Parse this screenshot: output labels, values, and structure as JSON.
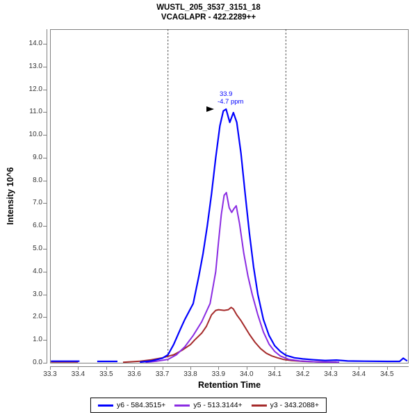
{
  "title": {
    "line1": "WUSTL_205_3537_3151_18",
    "line2": "VCAGLAPR - 422.2289++"
  },
  "legend": {
    "items": [
      {
        "label": "y6 - 584.3515+",
        "color": "#0000FF"
      },
      {
        "label": "y5 - 513.3144+",
        "color": "#8A2BE2"
      },
      {
        "label": "y3 - 343.2088+",
        "color": "#A52A2A"
      }
    ]
  },
  "annotation": {
    "rt_label": "33.9",
    "ppm_label": "-4.7 ppm"
  },
  "colors": {
    "frame": "#808080",
    "tick_text": "#333333",
    "boundary_line": "#444444",
    "annotation_text": "#0000FF",
    "title_text": "#000000"
  },
  "chart_data": {
    "type": "line",
    "title": "WUSTL_205_3537_3151_18",
    "subtitle": "VCAGLAPR - 422.2289++",
    "xlabel": "Retention Time",
    "ylabel": "Intensity 10^6",
    "xlim": [
      33.295,
      34.577
    ],
    "ylim": [
      0,
      14.64
    ],
    "x_ticks": [
      "33.3",
      "33.4",
      "33.5",
      "33.6",
      "33.7",
      "33.8",
      "33.9",
      "34.0",
      "34.1",
      "34.2",
      "34.3",
      "34.4",
      "34.5"
    ],
    "y_ticks": [
      "0.0",
      "1.0",
      "2.0",
      "3.0",
      "4.0",
      "5.0",
      "6.0",
      "7.0",
      "8.0",
      "9.0",
      "10.0",
      "11.0",
      "12.0",
      "13.0",
      "14.0"
    ],
    "grid": false,
    "legend_position": "bottom-center",
    "integration_boundaries": [
      33.72,
      34.14
    ],
    "peak_annotation": {
      "x": 33.92,
      "y": 11.13,
      "rt_label": "33.9",
      "ppm_label": "-4.7 ppm"
    },
    "series": [
      {
        "name": "y6 - 584.3515+",
        "color": "#0000FF",
        "width": 2.2,
        "segments": [
          [
            [
              33.303,
              0.07
            ],
            [
              33.405,
              0.07
            ]
          ],
          [
            [
              33.468,
              0.06
            ],
            [
              33.54,
              0.06
            ]
          ],
          [
            [
              33.62,
              0.03
            ],
            [
              33.66,
              0.08
            ],
            [
              33.7,
              0.2
            ],
            [
              33.72,
              0.35
            ],
            [
              33.74,
              0.8
            ],
            [
              33.765,
              1.5
            ],
            [
              33.78,
              1.9
            ],
            [
              33.81,
              2.6
            ],
            [
              33.83,
              3.8
            ],
            [
              33.845,
              4.8
            ],
            [
              33.86,
              6.0
            ],
            [
              33.875,
              7.4
            ],
            [
              33.89,
              9.0
            ],
            [
              33.905,
              10.4
            ],
            [
              33.917,
              11.05
            ],
            [
              33.927,
              11.13
            ],
            [
              33.94,
              10.55
            ],
            [
              33.953,
              10.98
            ],
            [
              33.965,
              10.55
            ],
            [
              33.98,
              9.2
            ],
            [
              33.995,
              7.4
            ],
            [
              34.01,
              5.7
            ],
            [
              34.025,
              4.2
            ],
            [
              34.04,
              3.0
            ],
            [
              34.06,
              1.9
            ],
            [
              34.08,
              1.2
            ],
            [
              34.1,
              0.75
            ],
            [
              34.12,
              0.5
            ],
            [
              34.14,
              0.33
            ],
            [
              34.17,
              0.22
            ],
            [
              34.2,
              0.17
            ],
            [
              34.24,
              0.13
            ],
            [
              34.28,
              0.1
            ],
            [
              34.32,
              0.12
            ],
            [
              34.36,
              0.08
            ],
            [
              34.42,
              0.07
            ],
            [
              34.5,
              0.06
            ],
            [
              34.545,
              0.06
            ],
            [
              34.558,
              0.2
            ],
            [
              34.572,
              0.08
            ]
          ]
        ]
      },
      {
        "name": "y5 - 513.3144+",
        "color": "#8A2BE2",
        "width": 2,
        "segments": [
          [
            [
              33.64,
              0.02
            ],
            [
              33.68,
              0.07
            ],
            [
              33.72,
              0.15
            ],
            [
              33.75,
              0.35
            ],
            [
              33.78,
              0.7
            ],
            [
              33.81,
              1.2
            ],
            [
              33.84,
              1.8
            ],
            [
              33.87,
              2.6
            ],
            [
              33.89,
              4.0
            ],
            [
              33.9,
              5.3
            ],
            [
              33.91,
              6.5
            ],
            [
              33.92,
              7.35
            ],
            [
              33.928,
              7.47
            ],
            [
              33.938,
              6.8
            ],
            [
              33.947,
              6.6
            ],
            [
              33.956,
              6.78
            ],
            [
              33.963,
              6.89
            ],
            [
              33.975,
              6.1
            ],
            [
              33.99,
              4.8
            ],
            [
              34.005,
              3.8
            ],
            [
              34.02,
              3.0
            ],
            [
              34.04,
              2.1
            ],
            [
              34.06,
              1.35
            ],
            [
              34.08,
              0.82
            ],
            [
              34.1,
              0.5
            ],
            [
              34.12,
              0.3
            ],
            [
              34.15,
              0.15
            ],
            [
              34.19,
              0.08
            ],
            [
              34.25,
              0.04
            ],
            [
              34.33,
              0.02
            ]
          ]
        ]
      },
      {
        "name": "y3 - 343.2088+",
        "color": "#A52A2A",
        "width": 2,
        "segments": [
          [
            [
              33.303,
              0.04
            ],
            [
              33.4,
              0.04
            ]
          ],
          [
            [
              33.56,
              0.02
            ],
            [
              33.62,
              0.07
            ],
            [
              33.66,
              0.13
            ],
            [
              33.7,
              0.22
            ],
            [
              33.74,
              0.35
            ],
            [
              33.77,
              0.55
            ],
            [
              33.8,
              0.8
            ],
            [
              33.815,
              1.0
            ],
            [
              33.84,
              1.3
            ],
            [
              33.857,
              1.6
            ],
            [
              33.875,
              2.1
            ],
            [
              33.89,
              2.3
            ],
            [
              33.9,
              2.33
            ],
            [
              33.92,
              2.3
            ],
            [
              33.935,
              2.33
            ],
            [
              33.945,
              2.43
            ],
            [
              33.953,
              2.36
            ],
            [
              33.965,
              2.1
            ],
            [
              33.98,
              1.85
            ],
            [
              33.995,
              1.55
            ],
            [
              34.01,
              1.25
            ],
            [
              34.03,
              0.9
            ],
            [
              34.05,
              0.62
            ],
            [
              34.07,
              0.42
            ],
            [
              34.09,
              0.3
            ],
            [
              34.11,
              0.22
            ],
            [
              34.13,
              0.15
            ],
            [
              34.16,
              0.1
            ],
            [
              34.2,
              0.06
            ],
            [
              34.26,
              0.04
            ],
            [
              34.32,
              0.03
            ]
          ]
        ]
      }
    ]
  }
}
